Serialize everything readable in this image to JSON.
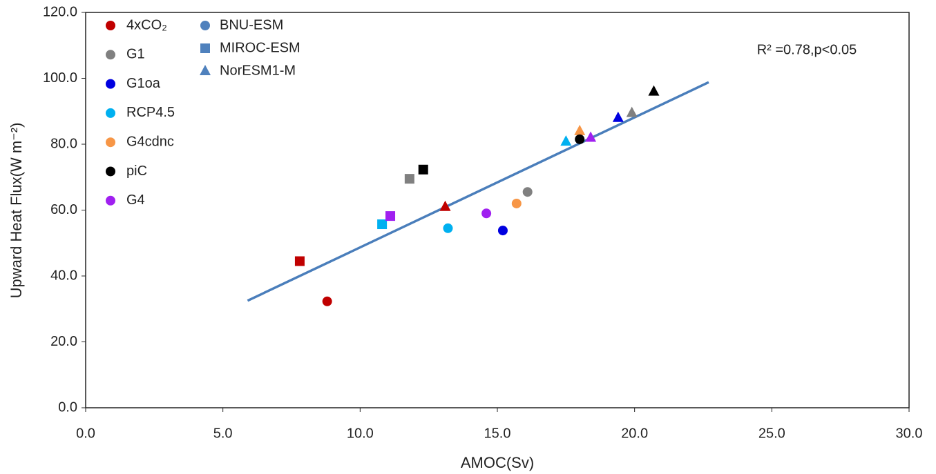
{
  "chart_data": {
    "type": "scatter",
    "xlabel": "AMOC(Sv)",
    "ylabel": "Upward Heat Flux(W m⁻²)",
    "annotation": "R² =0.78,p<0.05",
    "xlim": [
      0,
      30
    ],
    "ylim": [
      0,
      120
    ],
    "xticks": [
      {
        "value": 0,
        "label": "0.0"
      },
      {
        "value": 5,
        "label": "5.0"
      },
      {
        "value": 10,
        "label": "10.0"
      },
      {
        "value": 15,
        "label": "15.0"
      },
      {
        "value": 20,
        "label": "20.0"
      },
      {
        "value": 25,
        "label": "25.0"
      },
      {
        "value": 30,
        "label": "30.0"
      }
    ],
    "yticks": [
      {
        "value": 0,
        "label": "0.0"
      },
      {
        "value": 20,
        "label": "20.0"
      },
      {
        "value": 40,
        "label": "40.0"
      },
      {
        "value": 60,
        "label": "60.0"
      },
      {
        "value": 80,
        "label": "80.0"
      },
      {
        "value": 100,
        "label": "100.0"
      },
      {
        "value": 120,
        "label": "120.0"
      }
    ],
    "models": [
      {
        "name": "BNU-ESM",
        "marker": "circle"
      },
      {
        "name": "MIROC-ESM",
        "marker": "square"
      },
      {
        "name": "NorESM1-M",
        "marker": "triangle"
      }
    ],
    "model_color": "#4f81bd",
    "series": [
      {
        "name": "4xCO₂",
        "color": "#c00000",
        "x": [
          8.8,
          7.8,
          13.1
        ],
        "values": [
          32.3,
          44.5,
          61
        ]
      },
      {
        "name": "G1",
        "color": "#808080",
        "x": [
          16.1,
          11.8,
          19.9
        ],
        "values": [
          65.5,
          69.5,
          89.5
        ]
      },
      {
        "name": "G1oa",
        "color": "#0000e0",
        "x": [
          15.2,
          null,
          19.4
        ],
        "values": [
          53.8,
          null,
          88
        ]
      },
      {
        "name": "RCP4.5",
        "color": "#00b0f0",
        "x": [
          13.2,
          10.8,
          17.5
        ],
        "values": [
          54.5,
          55.7,
          80.8
        ]
      },
      {
        "name": "G4cdnc",
        "color": "#f79646",
        "x": [
          15.7,
          null,
          18
        ],
        "values": [
          62,
          null,
          84
        ]
      },
      {
        "name": "piC",
        "color": "#000000",
        "x": [
          18,
          12.3,
          20.7
        ],
        "values": [
          81.5,
          72.3,
          96
        ]
      },
      {
        "name": "G4",
        "color": "#a020f0",
        "x": [
          14.6,
          11.1,
          18.4
        ],
        "values": [
          59,
          58.2,
          82
        ]
      }
    ],
    "fit_line": {
      "color": "#4a7ebb",
      "x": [
        5.9,
        22.7
      ],
      "values": [
        32.5,
        98.8
      ]
    }
  }
}
